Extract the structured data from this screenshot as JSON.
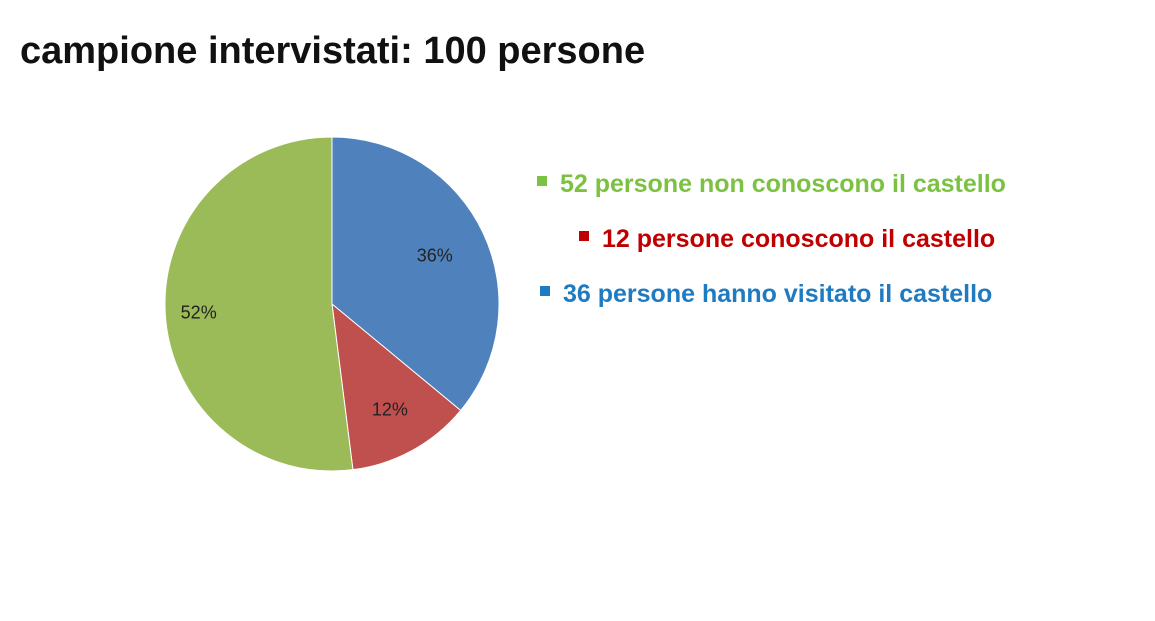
{
  "title": "campione intervistati: 100 persone",
  "chart_data": {
    "type": "pie",
    "slices": [
      {
        "label": "36 persone hanno visitato il castello",
        "value": 36,
        "pct_label": "36%",
        "color": "#4F81BD",
        "text_color": "#1F7BC1"
      },
      {
        "label": "12 persone conoscono il castello",
        "value": 12,
        "pct_label": "12%",
        "color": "#C0504D",
        "text_color": "#C00000"
      },
      {
        "label": "52 persone non conoscono il castello",
        "value": 52,
        "pct_label": "52%",
        "color": "#9BBB59",
        "text_color": "#7CC242"
      }
    ],
    "legend": [
      {
        "label": "52 persone non conoscono il castello",
        "color": "#7CC242"
      },
      {
        "label": "12 persone conoscono il castello",
        "color": "#C00000"
      },
      {
        "label": "36 persone hanno visitato il castello",
        "color": "#1F7BC1"
      }
    ],
    "legend_position": "right"
  }
}
